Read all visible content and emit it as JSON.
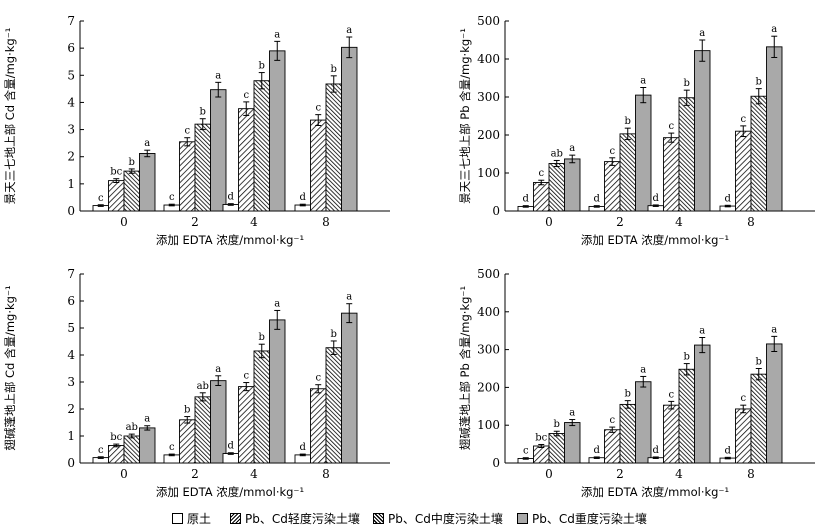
{
  "chart_data": [
    {
      "type": "bar",
      "ylabel": "景天三七地上部 Cd 含量/mg·kg⁻¹",
      "xlabel": "添加 EDTA 浓度/mmol·kg⁻¹",
      "categories": [
        "0",
        "2",
        "4",
        "8"
      ],
      "ylim": [
        0,
        7
      ],
      "yticks": [
        "0",
        "1",
        "2",
        "3",
        "4",
        "5",
        "6",
        "7"
      ],
      "series": [
        {
          "name": "原土",
          "values": [
            0.2,
            0.22,
            0.24,
            0.22
          ],
          "errors": [
            0.03,
            0.03,
            0.03,
            0.03
          ],
          "letters": [
            "c",
            "c",
            "d",
            "d"
          ]
        },
        {
          "name": "Pb、Cd轻度污染土壤",
          "values": [
            1.12,
            2.55,
            3.77,
            3.35
          ],
          "errors": [
            0.07,
            0.15,
            0.25,
            0.2
          ],
          "letters": [
            "bc",
            "c",
            "c",
            "c"
          ]
        },
        {
          "name": "Pb、Cd中度污染土壤",
          "values": [
            1.47,
            3.2,
            4.8,
            4.68
          ],
          "errors": [
            0.08,
            0.2,
            0.3,
            0.3
          ],
          "letters": [
            "b",
            "b",
            "b",
            "b"
          ]
        },
        {
          "name": "Pb、Cd重度污染土壤",
          "values": [
            2.12,
            4.47,
            5.9,
            6.03
          ],
          "errors": [
            0.12,
            0.27,
            0.35,
            0.38
          ],
          "letters": [
            "a",
            "a",
            "a",
            "a"
          ]
        }
      ]
    },
    {
      "type": "bar",
      "ylabel": "景天三七地上部 Pb 含量/mg·kg⁻¹",
      "xlabel": "添加 EDTA 浓度/mmol·kg⁻¹",
      "categories": [
        "0",
        "2",
        "4",
        "8"
      ],
      "ylim": [
        0,
        500
      ],
      "yticks": [
        "0",
        "100",
        "200",
        "300",
        "400",
        "500"
      ],
      "series": [
        {
          "name": "原土",
          "values": [
            12,
            12,
            14,
            13
          ],
          "errors": [
            2,
            2,
            2,
            2
          ],
          "letters": [
            "d",
            "d",
            "d",
            "d"
          ]
        },
        {
          "name": "Pb、Cd轻度污染土壤",
          "values": [
            75,
            130,
            193,
            210
          ],
          "errors": [
            6,
            10,
            12,
            14
          ],
          "letters": [
            "c",
            "c",
            "c",
            "c"
          ]
        },
        {
          "name": "Pb、Cd中度污染土壤",
          "values": [
            125,
            203,
            298,
            302
          ],
          "errors": [
            8,
            15,
            20,
            20
          ],
          "letters": [
            "ab",
            "b",
            "b",
            "b"
          ]
        },
        {
          "name": "Pb、Cd重度污染土壤",
          "values": [
            137,
            305,
            422,
            432
          ],
          "errors": [
            10,
            20,
            28,
            28
          ],
          "letters": [
            "a",
            "a",
            "a",
            "a"
          ]
        }
      ]
    },
    {
      "type": "bar",
      "ylabel": "翅碱蓬地上部 Cd 含量/mg·kg⁻¹",
      "xlabel": "添加 EDTA 浓度/mmol·kg⁻¹",
      "categories": [
        "0",
        "2",
        "4",
        "8"
      ],
      "ylim": [
        0,
        7
      ],
      "yticks": [
        "0",
        "1",
        "2",
        "3",
        "4",
        "5",
        "6",
        "7"
      ],
      "series": [
        {
          "name": "原土",
          "values": [
            0.2,
            0.3,
            0.35,
            0.3
          ],
          "errors": [
            0.03,
            0.03,
            0.03,
            0.03
          ],
          "letters": [
            "c",
            "c",
            "d",
            "d"
          ]
        },
        {
          "name": "Pb、Cd轻度污染土壤",
          "values": [
            0.65,
            1.6,
            2.83,
            2.75
          ],
          "errors": [
            0.05,
            0.12,
            0.15,
            0.15
          ],
          "letters": [
            "bc",
            "b",
            "c",
            "c"
          ]
        },
        {
          "name": "Pb、Cd中度污染土壤",
          "values": [
            1.0,
            2.45,
            4.15,
            4.27
          ],
          "errors": [
            0.07,
            0.15,
            0.25,
            0.25
          ],
          "letters": [
            "ab",
            "ab",
            "b",
            "b"
          ]
        },
        {
          "name": "Pb、Cd重度污染土壤",
          "values": [
            1.3,
            3.05,
            5.3,
            5.55
          ],
          "errors": [
            0.08,
            0.18,
            0.35,
            0.35
          ],
          "letters": [
            "a",
            "a",
            "a",
            "a"
          ]
        }
      ]
    },
    {
      "type": "bar",
      "ylabel": "翅碱蓬地上部 Pb 含量/mg·kg⁻¹",
      "xlabel": "添加 EDTA 浓度/mmol·kg⁻¹",
      "categories": [
        "0",
        "2",
        "4",
        "8"
      ],
      "ylim": [
        0,
        500
      ],
      "yticks": [
        "0",
        "100",
        "200",
        "300",
        "400",
        "500"
      ],
      "series": [
        {
          "name": "原土",
          "values": [
            12,
            14,
            14,
            13
          ],
          "errors": [
            2,
            2,
            2,
            2
          ],
          "letters": [
            "c",
            "d",
            "d",
            "d"
          ]
        },
        {
          "name": "Pb、Cd轻度污染土壤",
          "values": [
            45,
            88,
            153,
            143
          ],
          "errors": [
            4,
            7,
            10,
            10
          ],
          "letters": [
            "bc",
            "c",
            "c",
            "c"
          ]
        },
        {
          "name": "Pb、Cd中度污染土壤",
          "values": [
            78,
            155,
            248,
            235
          ],
          "errors": [
            6,
            10,
            15,
            15
          ],
          "letters": [
            "b",
            "b",
            "b",
            "b"
          ]
        },
        {
          "name": "Pb、Cd重度污染土壤",
          "values": [
            107,
            215,
            312,
            315
          ],
          "errors": [
            8,
            14,
            20,
            20
          ],
          "letters": [
            "a",
            "a",
            "a",
            "a"
          ]
        }
      ]
    }
  ],
  "legend": {
    "items": [
      "原土",
      "Pb、Cd轻度污染土壤",
      "Pb、Cd中度污染土壤",
      "Pb、Cd重度污染土壤"
    ]
  }
}
